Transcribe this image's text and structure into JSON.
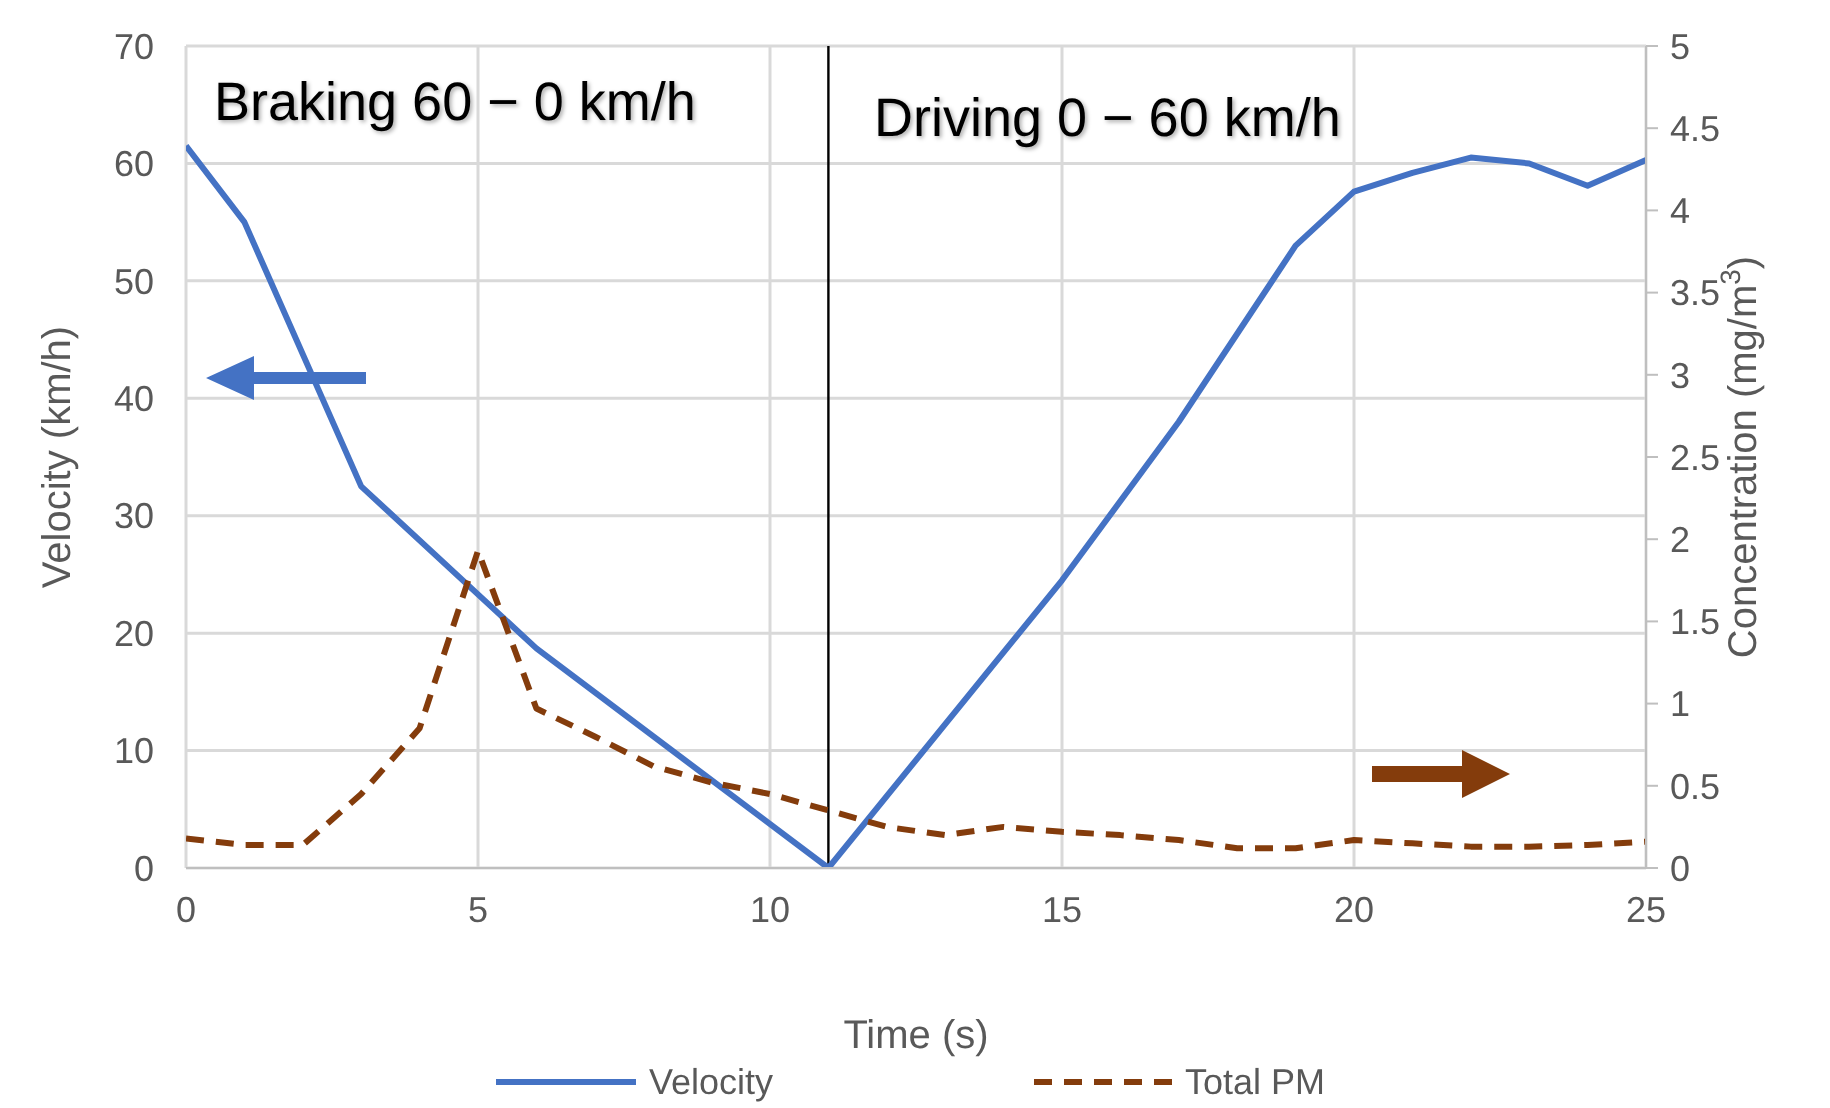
{
  "chart_data": {
    "type": "line",
    "xlabel": "Time (s)",
    "ylabel": "Velocity (km/h)",
    "y2label": "Concentration (mg/m$^{3}$)",
    "xlim": [
      0,
      25
    ],
    "xticks": [
      0,
      5,
      10,
      15,
      20,
      25
    ],
    "ylim": [
      0,
      70
    ],
    "yticks": [
      0,
      10,
      20,
      30,
      40,
      50,
      60,
      70
    ],
    "y2lim": [
      0,
      5
    ],
    "y2ticks": [
      0,
      0.5,
      1,
      1.5,
      2,
      2.5,
      3,
      3.5,
      4,
      4.5,
      5
    ],
    "grid": true,
    "legend": "bottom",
    "marker": "none",
    "annotations": [
      "Braking 60 − 0 km/h",
      "Driving 0 − 60 km/h"
    ],
    "ref_lines": [
      {
        "axis": "x",
        "value": 11,
        "color": "#000000"
      }
    ],
    "series": [
      {
        "name": "Velocity",
        "color": "#4472c4",
        "line_style": "solid",
        "x": [
          0,
          1,
          3,
          6,
          11,
          15,
          17,
          19,
          20,
          21,
          22,
          23,
          24,
          25
        ],
        "values": [
          61.5,
          55,
          32.5,
          18.7,
          0,
          24.5,
          38,
          53,
          57.6,
          59.2,
          60.5,
          60,
          58.1,
          60.3
        ]
      },
      {
        "name": "Total PM",
        "color": "#843c0c",
        "line_style": "dashed",
        "axis": "y2",
        "x": [
          0,
          1,
          2,
          3,
          4,
          5,
          6,
          7,
          8,
          9,
          10,
          11,
          12,
          13,
          14,
          15,
          16,
          17,
          18,
          19,
          20,
          21,
          22,
          23,
          24,
          25
        ],
        "values": [
          0.18,
          0.14,
          0.14,
          0.45,
          0.85,
          1.93,
          0.97,
          0.8,
          0.62,
          0.52,
          0.45,
          0.35,
          0.25,
          0.2,
          0.25,
          0.22,
          0.2,
          0.17,
          0.12,
          0.12,
          0.17,
          0.15,
          0.13,
          0.13,
          0.14,
          0.16
        ]
      }
    ]
  }
}
